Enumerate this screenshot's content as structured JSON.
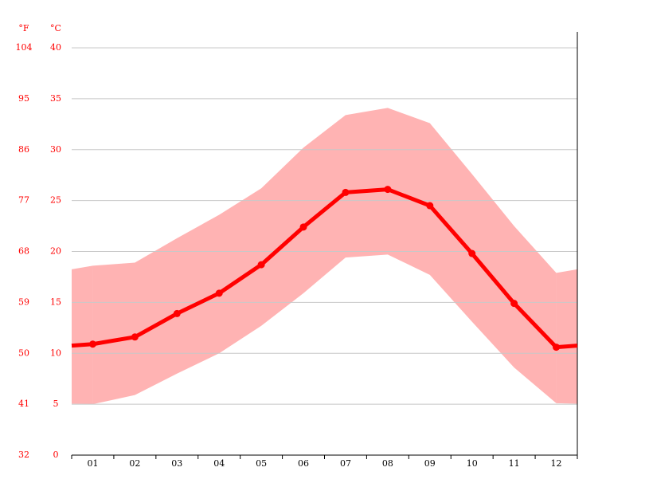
{
  "chart_data": {
    "type": "climate",
    "y2_label": "°F",
    "y_label": "°C",
    "categories": [
      "01",
      "02",
      "03",
      "04",
      "05",
      "06",
      "07",
      "08",
      "09",
      "10",
      "11",
      "12"
    ],
    "series": [
      {
        "color": "#ff0000",
        "values": [
          10.9,
          11.6,
          13.9,
          15.9,
          18.7,
          22.4,
          25.8,
          26.1,
          24.5,
          19.8,
          14.9,
          10.6
        ]
      }
    ],
    "band": {
      "color": "#ffb3b3",
      "high": [
        18.6,
        18.9,
        21.3,
        23.6,
        26.2,
        30.2,
        33.4,
        34.1,
        32.6,
        27.6,
        22.5,
        17.9
      ],
      "low": [
        5.0,
        5.9,
        8.0,
        10.0,
        12.7,
        15.9,
        19.4,
        19.7,
        17.7,
        13.1,
        8.6,
        5.1
      ]
    },
    "ylim": [
      0,
      40
    ],
    "yticks": [
      0,
      5,
      10,
      15,
      20,
      25,
      30,
      35,
      40
    ],
    "y2lim": [
      32,
      104
    ],
    "y2ticks": [
      32,
      41,
      50,
      59,
      68,
      77,
      86,
      95,
      104
    ],
    "grid": true,
    "axis_color": "#ff0000"
  }
}
